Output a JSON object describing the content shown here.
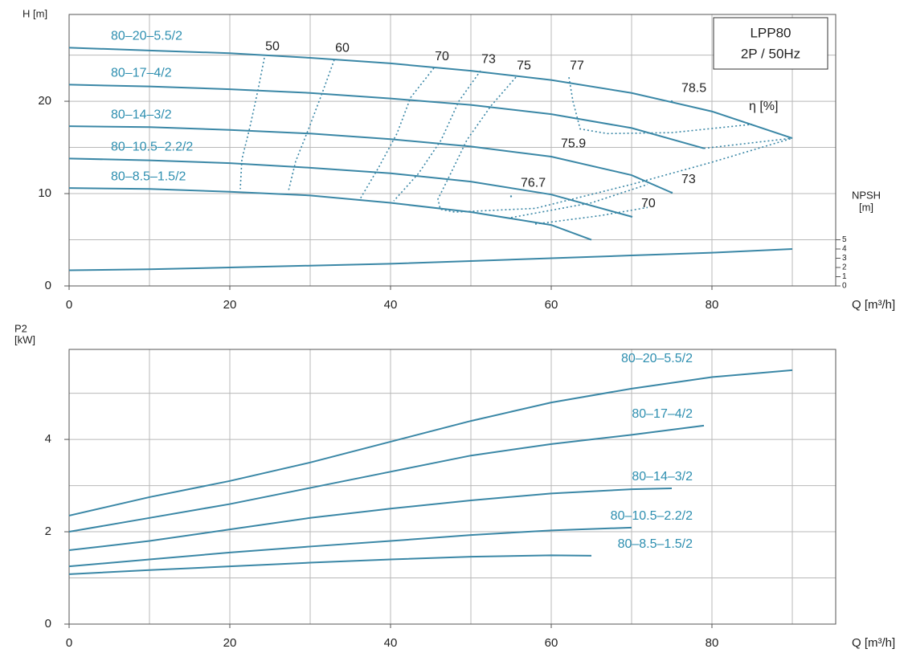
{
  "chart_data": [
    {
      "type": "line",
      "box": [
        "LPP80",
        "2P / 50Hz"
      ],
      "y_label": "H [m]",
      "x_label": "Q [m³/h]",
      "y2_label": [
        "NPSH",
        "[m]"
      ],
      "xlim": [
        0,
        95.4
      ],
      "ylim": [
        0,
        29.4
      ],
      "y2lim": [
        0,
        29.4
      ],
      "xticks": [
        0,
        20,
        40,
        60,
        80
      ],
      "yticks": [
        0,
        10,
        20
      ],
      "y2ticks": [
        0,
        1,
        2,
        3,
        4,
        5
      ],
      "xgrid": [
        10,
        20,
        30,
        40,
        50,
        60,
        70,
        80,
        90
      ],
      "ygrid": [
        5,
        10,
        15,
        20,
        25
      ],
      "color": "#3a87a6",
      "series": [
        {
          "name": "80–20–5.5/2",
          "x": [
            0,
            10,
            20,
            30,
            40,
            50,
            60,
            70,
            80,
            90
          ],
          "values": [
            25.8,
            25.5,
            25.2,
            24.7,
            24.1,
            23.3,
            22.3,
            20.9,
            18.9,
            16.0
          ]
        },
        {
          "name": "80–17–4/2",
          "x": [
            0,
            10,
            20,
            30,
            40,
            50,
            60,
            70,
            79
          ],
          "values": [
            21.8,
            21.6,
            21.3,
            20.9,
            20.3,
            19.6,
            18.6,
            17.1,
            14.9
          ]
        },
        {
          "name": "80–14–3/2",
          "x": [
            0,
            10,
            20,
            30,
            40,
            50,
            60,
            70,
            75
          ],
          "values": [
            17.3,
            17.2,
            16.9,
            16.5,
            15.9,
            15.1,
            14.0,
            12.0,
            10.1
          ]
        },
        {
          "name": "80–10.5–2.2/2",
          "x": [
            0,
            10,
            20,
            30,
            40,
            50,
            60,
            70
          ],
          "values": [
            13.8,
            13.6,
            13.3,
            12.8,
            12.2,
            11.3,
            9.9,
            7.5
          ]
        },
        {
          "name": "80–8.5–1.5/2",
          "x": [
            0,
            10,
            20,
            30,
            40,
            50,
            60,
            65
          ],
          "values": [
            10.6,
            10.5,
            10.2,
            9.8,
            9.0,
            8.0,
            6.6,
            5.0
          ]
        },
        {
          "axis": "y2",
          "x": [
            0,
            10,
            20,
            30,
            40,
            50,
            60,
            70,
            80,
            90
          ],
          "values": [
            1.7,
            1.8,
            2.0,
            2.2,
            2.4,
            2.7,
            3.0,
            3.3,
            3.6,
            4.0
          ]
        }
      ],
      "efficiency_label": "η [%]",
      "efficiency_curves": [
        {
          "label": 50,
          "x": [
            24.3,
            23.5,
            22.5,
            21.5,
            21.3
          ],
          "values": [
            24.7,
            21.2,
            17.2,
            13.7,
            10.5
          ]
        },
        {
          "label": 60,
          "x": [
            33,
            31.5,
            29.8,
            28.2,
            27.3
          ],
          "values": [
            24.5,
            20.9,
            17,
            13.5,
            10.3
          ]
        },
        {
          "label": 70,
          "x": [
            45.4,
            42.5,
            40.8,
            38.5,
            36.2
          ],
          "values": [
            23.6,
            20.4,
            16.5,
            12.8,
            9.4
          ]
        },
        {
          "label": 73,
          "x": [
            51.2,
            48.5,
            46.3,
            43.5,
            40.4
          ],
          "values": [
            23.3,
            20,
            15.8,
            12.2,
            9.2
          ]
        },
        {
          "label": 75,
          "x": [
            55.6,
            52.5,
            49.5,
            47.5,
            45.9,
            46.2,
            48,
            58,
            70,
            80,
            90
          ],
          "values": [
            22.6,
            19.5,
            15.8,
            12.2,
            9.4,
            8.3,
            8.0,
            8.4,
            11.0,
            13.4,
            16.0
          ]
        },
        {
          "label": 77,
          "x": [
            62.2,
            62.7,
            63.6,
            67,
            75,
            85
          ],
          "values": [
            22.6,
            20.0,
            17.0,
            16.5,
            16.6,
            17.5
          ]
        },
        {
          "x": [
            79,
            90
          ],
          "values": [
            14.9,
            16.0
          ]
        },
        {
          "x": [
            55,
            65,
            72
          ],
          "values": [
            7.4,
            9.0,
            11.0
          ]
        },
        {
          "x": [
            58,
            66,
            72
          ],
          "values": [
            6.7,
            7.6,
            8.5
          ]
        }
      ],
      "efficiency_points": [
        {
          "label": 78.5,
          "x": 75,
          "y": 20.0
        },
        {
          "label": 75.9,
          "x": 60,
          "y": 14.0
        },
        {
          "label": 76.7,
          "x": 55,
          "y": 9.7
        },
        {
          "label": 73,
          "x": 75,
          "y": 10.1
        },
        {
          "label": 70,
          "x": 70,
          "y": 7.5
        }
      ]
    },
    {
      "type": "line",
      "y_label": [
        "P2",
        "[kW]"
      ],
      "x_label": "Q [m³/h]",
      "xlim": [
        0,
        95.4
      ],
      "ylim": [
        0,
        5.95
      ],
      "xticks": [
        0,
        20,
        40,
        60,
        80
      ],
      "yticks": [
        0,
        2,
        4
      ],
      "xgrid": [
        10,
        20,
        30,
        40,
        50,
        60,
        70,
        80,
        90
      ],
      "ygrid": [
        1,
        2,
        3,
        4,
        5
      ],
      "color": "#3a87a6",
      "series": [
        {
          "name": "80–20–5.5/2",
          "x": [
            0,
            10,
            20,
            30,
            40,
            50,
            60,
            70,
            80,
            90
          ],
          "values": [
            2.35,
            2.75,
            3.1,
            3.5,
            3.95,
            4.4,
            4.8,
            5.1,
            5.35,
            5.5
          ]
        },
        {
          "name": "80–17–4/2",
          "x": [
            0,
            10,
            20,
            30,
            40,
            50,
            60,
            70,
            79
          ],
          "values": [
            2.0,
            2.3,
            2.6,
            2.95,
            3.3,
            3.65,
            3.9,
            4.1,
            4.3
          ]
        },
        {
          "name": "80–14–3/2",
          "x": [
            0,
            10,
            20,
            30,
            40,
            50,
            60,
            70,
            75
          ],
          "values": [
            1.6,
            1.8,
            2.05,
            2.3,
            2.5,
            2.68,
            2.83,
            2.92,
            2.94
          ]
        },
        {
          "name": "80–10.5–2.2/2",
          "x": [
            0,
            10,
            20,
            30,
            40,
            50,
            60,
            70
          ],
          "values": [
            1.25,
            1.4,
            1.55,
            1.68,
            1.8,
            1.93,
            2.03,
            2.09
          ]
        },
        {
          "name": "80–8.5–1.5/2",
          "x": [
            0,
            10,
            20,
            30,
            40,
            50,
            60,
            65
          ],
          "values": [
            1.08,
            1.17,
            1.25,
            1.33,
            1.4,
            1.46,
            1.49,
            1.48
          ]
        }
      ]
    }
  ]
}
